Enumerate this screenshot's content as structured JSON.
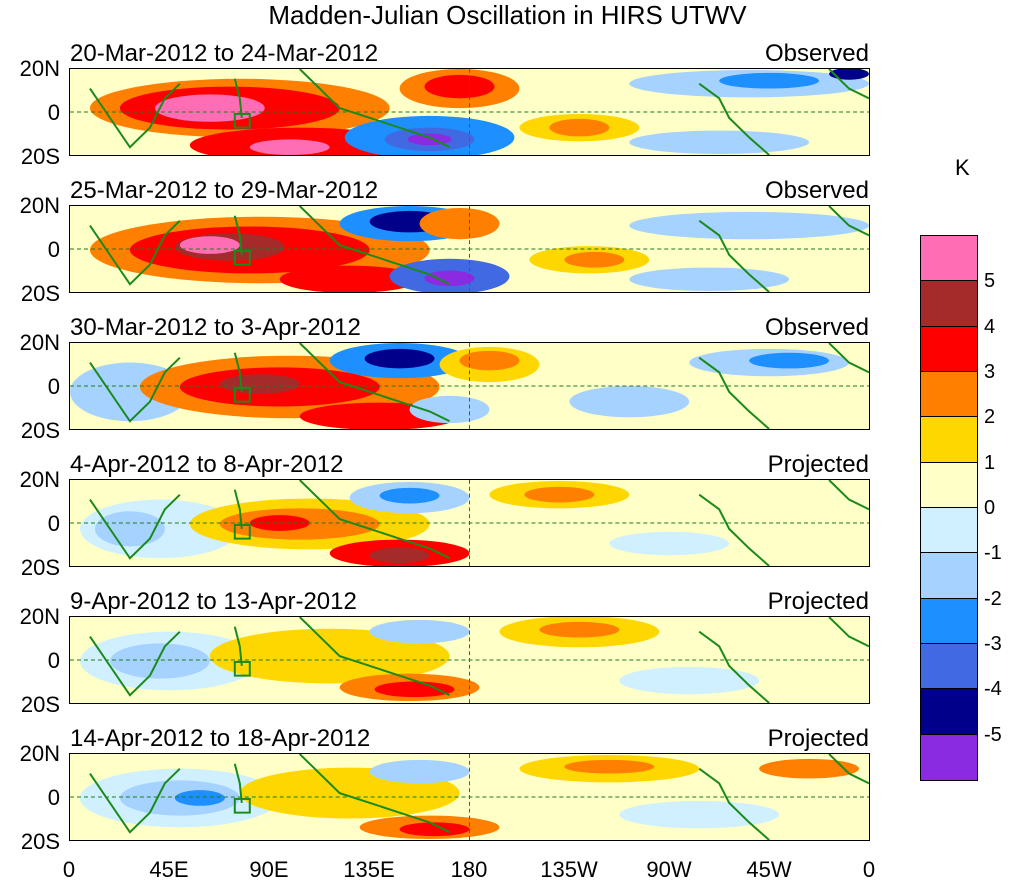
{
  "title": "Madden-Julian Oscillation in HIRS UTWV",
  "panels": [
    {
      "dates": "20-Mar-2012 to 24-Mar-2012",
      "status": "Observed"
    },
    {
      "dates": "25-Mar-2012 to 29-Mar-2012",
      "status": "Observed"
    },
    {
      "dates": "30-Mar-2012 to 3-Apr-2012",
      "status": "Observed"
    },
    {
      "dates": "4-Apr-2012 to 8-Apr-2012",
      "status": "Projected"
    },
    {
      "dates": "9-Apr-2012 to 13-Apr-2012",
      "status": "Projected"
    },
    {
      "dates": "14-Apr-2012 to 18-Apr-2012",
      "status": "Projected"
    }
  ],
  "y_axis_labels": [
    "20N",
    "0",
    "20S"
  ],
  "x_axis_labels": [
    "0",
    "45E",
    "90E",
    "135E",
    "180",
    "135W",
    "90W",
    "45W",
    "0"
  ],
  "colorbar": {
    "unit": "K",
    "labels": [
      "5",
      "4",
      "3",
      "2",
      "1",
      "0",
      "-1",
      "-2",
      "-3",
      "-4",
      "-5"
    ],
    "colors": [
      "#ff6eb4",
      "#a52a2a",
      "#ff0000",
      "#ff7f00",
      "#ffd700",
      "#ffffc8",
      "#d0f0ff",
      "#a6d2ff",
      "#1e8fff",
      "#4169e1",
      "#00008b",
      "#8a2be2"
    ]
  }
}
